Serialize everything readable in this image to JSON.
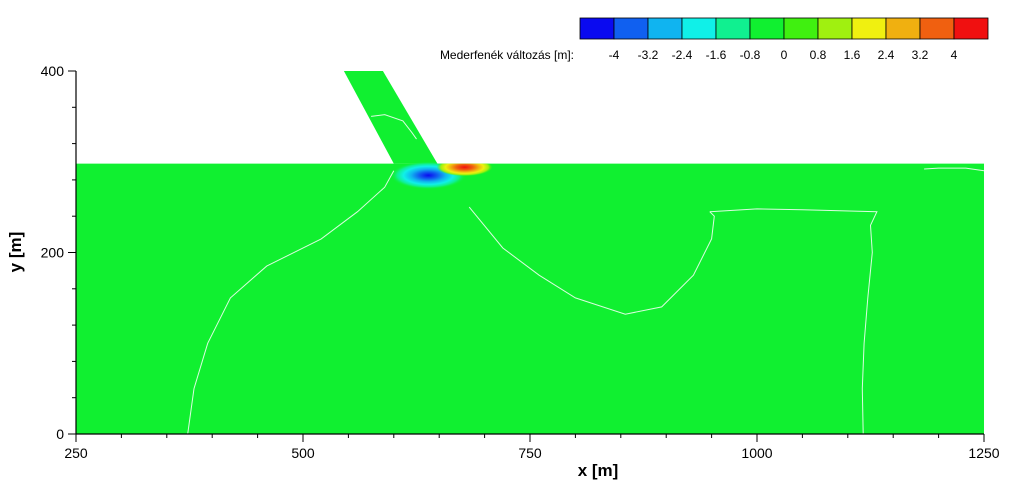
{
  "chart_data": {
    "type": "heatmap",
    "xlabel": "x [m]",
    "ylabel": "y [m]",
    "xlim": [
      250,
      1250
    ],
    "ylim": [
      0,
      400
    ],
    "xticks": [
      250,
      500,
      750,
      1000,
      1250
    ],
    "yticks": [
      0,
      200,
      400
    ],
    "grid": false,
    "legend": {
      "title": "Mederfenék változás [m]:",
      "position": "top-right",
      "levels": [
        -4.4,
        -3.6,
        -2.8,
        -2.0,
        -1.2,
        -0.4,
        0.4,
        1.2,
        2.0,
        2.8,
        3.6,
        4.4
      ],
      "labels": [
        "-4",
        "-3.2",
        "-2.4",
        "-1.6",
        "-0.8",
        "0",
        "0.8",
        "1.6",
        "2.4",
        "3.2",
        "4"
      ],
      "colors": [
        "#0a0af0",
        "#1060f0",
        "#10b4f0",
        "#10f0e8",
        "#10f090",
        "#10f030",
        "#40f010",
        "#a0f010",
        "#f0f010",
        "#f0b010",
        "#f06010",
        "#f01010"
      ]
    },
    "domain": {
      "main_channel": {
        "x": [
          250,
          1250
        ],
        "y": [
          0,
          298
        ],
        "value": 0
      },
      "side_channel": [
        [
          545,
          400
        ],
        [
          588,
          400
        ],
        [
          648,
          298
        ],
        [
          600,
          298
        ]
      ]
    },
    "contour_lines": [
      [
        [
          373,
          0
        ],
        [
          380,
          50
        ],
        [
          395,
          100
        ],
        [
          420,
          150
        ],
        [
          460,
          185
        ],
        [
          520,
          215
        ],
        [
          560,
          245
        ],
        [
          590,
          272
        ],
        [
          600,
          290
        ]
      ],
      [
        [
          683,
          250
        ],
        [
          720,
          205
        ],
        [
          760,
          175
        ],
        [
          800,
          150
        ],
        [
          855,
          132
        ],
        [
          895,
          140
        ],
        [
          930,
          175
        ],
        [
          950,
          215
        ],
        [
          953,
          240
        ],
        [
          948,
          245
        ]
      ],
      [
        [
          948,
          245
        ],
        [
          1000,
          248
        ],
        [
          1050,
          247
        ],
        [
          1132,
          245
        ],
        [
          1125,
          230
        ],
        [
          1127,
          200
        ],
        [
          1122,
          150
        ],
        [
          1118,
          100
        ],
        [
          1116,
          50
        ],
        [
          1117,
          0
        ]
      ],
      [
        [
          1184,
          292
        ],
        [
          1200,
          293
        ],
        [
          1230,
          293
        ],
        [
          1250,
          290
        ]
      ],
      [
        [
          575,
          350
        ],
        [
          590,
          352
        ],
        [
          610,
          345
        ],
        [
          620,
          332
        ],
        [
          625,
          325
        ]
      ]
    ],
    "features": [
      {
        "name": "scour",
        "x": 638,
        "y": 285,
        "min_value": -4
      },
      {
        "name": "deposition",
        "x": 678,
        "y": 294,
        "max_value": 3
      }
    ]
  }
}
